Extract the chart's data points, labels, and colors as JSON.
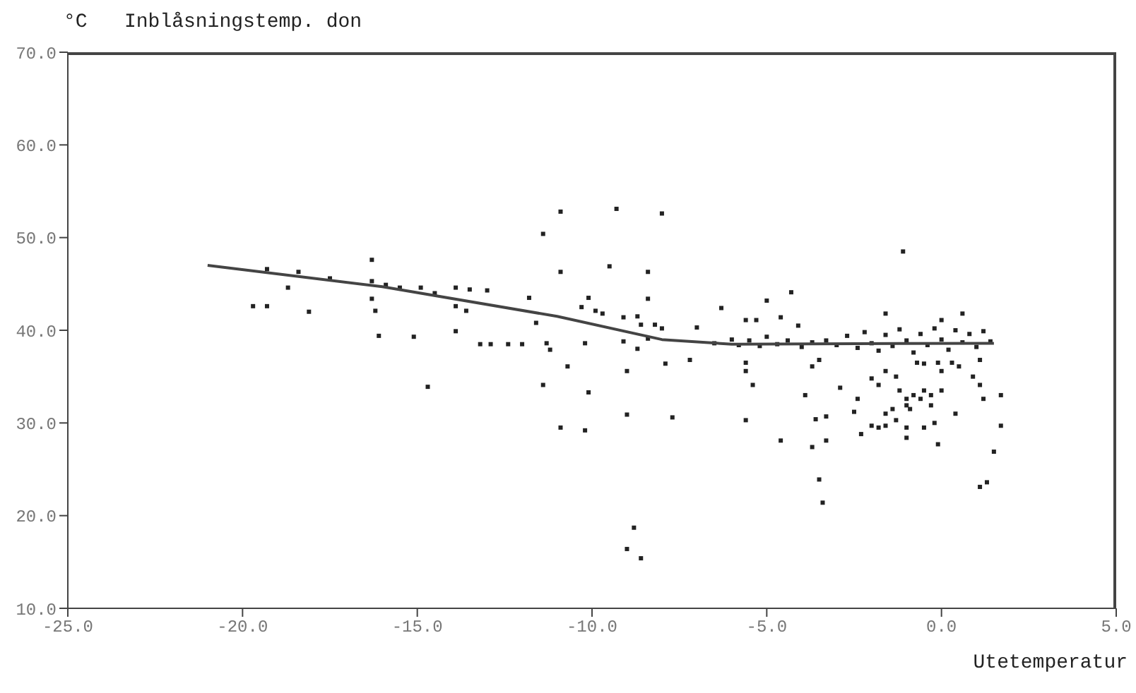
{
  "chart_data": {
    "type": "scatter",
    "title": "Inblåsningstemp. don",
    "ylabel": "°C",
    "xlabel": "Utetemperatur",
    "xlim": [
      -25,
      5
    ],
    "xticks": [
      {
        "value": -25,
        "label": "-25.0"
      },
      {
        "value": -20,
        "label": "-20.0"
      },
      {
        "value": -15,
        "label": "-15.0"
      },
      {
        "value": -10,
        "label": "-10.0"
      },
      {
        "value": -5,
        "label": "-5.0"
      },
      {
        "value": 0,
        "label": "0.0"
      },
      {
        "value": 5,
        "label": "5.0"
      }
    ],
    "ylim": [
      10,
      70
    ],
    "yticks": [
      {
        "value": 10,
        "label": "10.0"
      },
      {
        "value": 20,
        "label": "20.0"
      },
      {
        "value": 30,
        "label": "30.0"
      },
      {
        "value": 40,
        "label": "40.0"
      },
      {
        "value": 50,
        "label": "50.0"
      },
      {
        "value": 60,
        "label": "60.0"
      },
      {
        "value": 70,
        "label": "70.0"
      }
    ],
    "series": [
      {
        "marker": "square",
        "color": "#222222",
        "x": [
          -19.3,
          -18.4,
          -17.5,
          -18.7,
          -19.7,
          -19.3,
          -18.1,
          -16.3,
          -16.3,
          -16.2,
          -16.1,
          -15.1,
          -14.7,
          -13.9,
          -13.2,
          -12.9,
          -12.4,
          -12.0,
          -11.4,
          -11.8,
          -11.4,
          -10.9,
          -10.9,
          -10.9,
          -16.3,
          -15.9,
          -15.5,
          -14.9,
          -14.5,
          -13.9,
          -13.5,
          -13.0,
          -13.9,
          -13.6,
          -11.6,
          -11.3,
          -11.2,
          -9.3,
          -8.0,
          -9.5,
          -8.4,
          -8.4,
          -10.1,
          -10.3,
          -9.9,
          -9.7,
          -9.1,
          -8.7,
          -8.6,
          -8.2,
          -8.0,
          -10.2,
          -9.1,
          -8.7,
          -8.4,
          -10.7,
          -9.0,
          -7.9,
          -10.1,
          -9.0,
          -7.7,
          -10.2,
          -8.8,
          -9.0,
          -8.6,
          -7.0,
          -7.2,
          -6.3,
          -5.6,
          -5.3,
          -5.0,
          -4.3,
          -4.6,
          -4.1,
          -5.6,
          -5.6,
          -5.4,
          -5.6,
          -4.6,
          -3.9,
          -3.7,
          -3.5,
          -3.6,
          -3.3,
          -3.7,
          -3.3,
          -3.5,
          -3.4,
          -2.9,
          -2.3,
          -2.0,
          -1.8,
          -1.6,
          -2.5,
          -2.4,
          -2.0,
          -1.8,
          -1.6,
          -1.3,
          -1.2,
          -1.0,
          -0.8,
          -0.6,
          -0.5,
          -1.0,
          -0.3,
          -0.3,
          -1.4,
          -0.9,
          -1.6,
          -1.3,
          -1.0,
          -1.0,
          -0.5,
          -0.2,
          -0.1,
          -0.5,
          -0.7,
          -0.1,
          0.0,
          0.0,
          0.3,
          0.5,
          0.4,
          0.9,
          1.1,
          1.2,
          1.7,
          1.7,
          1.5,
          1.1,
          1.3,
          -1.1,
          -1.6,
          0.6,
          0.0,
          1.1,
          -6.5,
          -6.0,
          -5.8,
          -5.5,
          -5.2,
          -5.0,
          -4.7,
          -4.4,
          -4.0,
          -3.7,
          -3.3,
          -3.0,
          -2.7,
          -2.4,
          -2.2,
          -2.0,
          -1.8,
          -1.6,
          -1.4,
          -1.2,
          -1.0,
          -0.8,
          -0.6,
          -0.4,
          -0.2,
          0.0,
          0.2,
          0.4,
          0.6,
          0.8,
          1.0,
          1.2,
          1.4
        ],
        "values": [
          46.6,
          46.3,
          45.6,
          44.6,
          42.6,
          42.6,
          42.0,
          47.6,
          43.4,
          42.1,
          39.4,
          39.3,
          33.9,
          39.9,
          38.5,
          38.5,
          38.5,
          38.5,
          50.4,
          43.5,
          34.1,
          52.8,
          46.3,
          29.5,
          45.3,
          44.9,
          44.6,
          44.6,
          44.0,
          44.6,
          44.4,
          44.3,
          42.6,
          42.1,
          40.8,
          38.6,
          37.9,
          53.1,
          52.6,
          46.9,
          46.3,
          43.4,
          43.5,
          42.5,
          42.1,
          41.8,
          41.4,
          41.5,
          40.6,
          40.6,
          40.2,
          38.6,
          38.8,
          38.0,
          39.1,
          36.1,
          35.6,
          36.4,
          33.3,
          30.9,
          30.6,
          29.2,
          18.7,
          16.4,
          15.4,
          40.3,
          36.8,
          42.4,
          41.1,
          41.1,
          43.2,
          44.1,
          41.4,
          40.5,
          36.5,
          35.6,
          34.1,
          30.3,
          28.1,
          33.0,
          36.1,
          36.8,
          30.4,
          30.7,
          27.4,
          28.1,
          23.9,
          21.4,
          33.8,
          28.8,
          29.7,
          29.5,
          29.7,
          31.2,
          32.6,
          34.8,
          34.1,
          35.6,
          35.0,
          33.5,
          32.6,
          33.0,
          32.6,
          33.5,
          31.9,
          31.9,
          33.0,
          31.5,
          31.5,
          31.0,
          30.3,
          29.5,
          28.4,
          29.5,
          30.0,
          27.7,
          36.4,
          36.5,
          36.5,
          35.6,
          33.5,
          36.5,
          36.1,
          31.0,
          35.0,
          34.1,
          32.6,
          33.0,
          29.7,
          26.9,
          23.1,
          23.6,
          48.5,
          41.8,
          41.8,
          41.1,
          36.8,
          38.6,
          39.0,
          38.4,
          38.9,
          38.3,
          39.3,
          38.5,
          38.9,
          38.2,
          38.7,
          38.9,
          38.4,
          39.4,
          38.1,
          39.8,
          38.6,
          37.8,
          39.5,
          38.3,
          40.1,
          38.9,
          37.6,
          39.6,
          38.4,
          40.2,
          39.0,
          37.9,
          40.0,
          38.7,
          39.6,
          38.2,
          39.9,
          38.8
        ]
      },
      {
        "type": "line",
        "color": "#444444",
        "x": [
          -21,
          -16,
          -11,
          -8,
          -6,
          1.5
        ],
        "values": [
          47,
          44.7,
          41.5,
          39,
          38.5,
          38.6
        ]
      }
    ]
  }
}
